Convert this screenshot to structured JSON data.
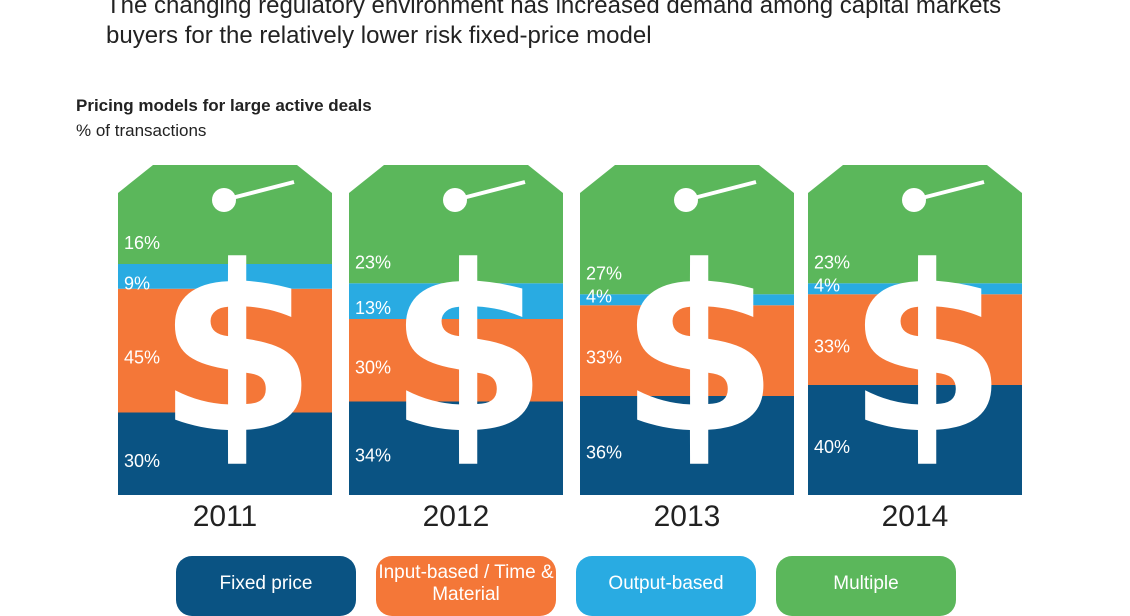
{
  "headline": "The changing regulatory environment has increased demand among capital markets buyers for the relatively lower risk fixed-price model",
  "colors": {
    "fixed_price": "#0a5383",
    "input_based": "#f47738",
    "output_based": "#29abe2",
    "multiple": "#5bb75b"
  },
  "chart_data": {
    "type": "bar",
    "stacked": true,
    "title": "Pricing models for large active deals",
    "subtitle": "% of transactions",
    "categories": [
      "2011",
      "2012",
      "2013",
      "2014"
    ],
    "series": [
      {
        "name": "Fixed price",
        "values": [
          30,
          34,
          36,
          40
        ],
        "labels": [
          "30%",
          "34%",
          "36%",
          "40%"
        ],
        "color": "#0a5383"
      },
      {
        "name": "Input-based / Time & Material",
        "values": [
          45,
          30,
          33,
          33
        ],
        "labels": [
          "45%",
          "30%",
          "33%",
          "33%"
        ],
        "color": "#f47738"
      },
      {
        "name": "Output-based",
        "values": [
          9,
          13,
          4,
          4
        ],
        "labels": [
          "9%",
          "13%",
          "4%",
          "4%"
        ],
        "color": "#29abe2"
      },
      {
        "name": "Multiple",
        "values": [
          16,
          23,
          27,
          23
        ],
        "labels": [
          "16%",
          "23%",
          "27%",
          "23%"
        ],
        "color": "#5bb75b"
      }
    ],
    "ylim": [
      0,
      100
    ],
    "legend_position": "bottom"
  },
  "legend": [
    {
      "label": "Fixed price",
      "color": "#0a5383"
    },
    {
      "label": "Input-based / Time & Material",
      "color": "#f47738"
    },
    {
      "label": "Output-based",
      "color": "#29abe2"
    },
    {
      "label": "Multiple",
      "color": "#5bb75b"
    }
  ]
}
